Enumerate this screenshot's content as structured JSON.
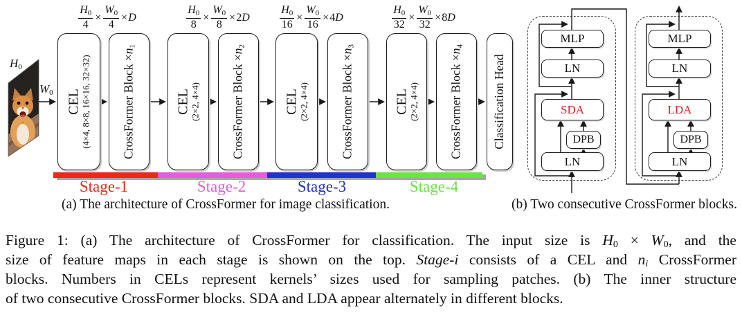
{
  "panel_a": {
    "caption": "(a) The architecture of CrossFormer for image classification.",
    "input_labels": {
      "h_base": "H",
      "h_sub": "0",
      "w_base": "W",
      "w_sub": "0"
    },
    "dim_labels": [
      {
        "num_h": "H",
        "num_w": "W",
        "sub": "0",
        "den": "4",
        "times": "×",
        "coef": "",
        "var": "D"
      },
      {
        "num_h": "H",
        "num_w": "W",
        "sub": "0",
        "den": "8",
        "times": "×",
        "coef": "2",
        "var": "D"
      },
      {
        "num_h": "H",
        "num_w": "W",
        "sub": "0",
        "den": "16",
        "times": "×",
        "coef": "4",
        "var": "D"
      },
      {
        "num_h": "H",
        "num_w": "W",
        "sub": "0",
        "den": "32",
        "times": "×",
        "coef": "8",
        "var": "D"
      }
    ],
    "blocks": [
      {
        "kind": "cel",
        "label": "CEL",
        "kernels": "(4×4, 8×8, 16×16, 32×32)"
      },
      {
        "kind": "crossformer",
        "label": "CrossFormer Block ×",
        "n": "n",
        "n_sub": "1"
      },
      {
        "kind": "cel",
        "label": "CEL",
        "kernels": "(2×2, 4×4)"
      },
      {
        "kind": "crossformer",
        "label": "CrossFormer Block ×",
        "n": "n",
        "n_sub": "2"
      },
      {
        "kind": "cel",
        "label": "CEL",
        "kernels": "(2×2, 4×4)"
      },
      {
        "kind": "crossformer",
        "label": "CrossFormer Block ×",
        "n": "n",
        "n_sub": "3"
      },
      {
        "kind": "cel",
        "label": "CEL",
        "kernels": "(2×2, 4×4)"
      },
      {
        "kind": "crossformer",
        "label": "CrossFormer Block ×",
        "n": "n",
        "n_sub": "4"
      },
      {
        "kind": "head",
        "label": "Classification Head"
      }
    ],
    "stages": [
      {
        "label": "Stage-1",
        "color": "#e82a17"
      },
      {
        "label": "Stage-2",
        "color": "#e55ce0"
      },
      {
        "label": "Stage-3",
        "color": "#2134c9"
      },
      {
        "label": "Stage-4",
        "color": "#68e743"
      }
    ]
  },
  "panel_b": {
    "caption": "(b) Two consecutive CrossFormer blocks.",
    "attn_color": "#e02420",
    "block_left": {
      "mlp": "MLP",
      "ln1": "LN",
      "attn": "SDA",
      "dpb": "DPB",
      "ln2": "LN"
    },
    "block_right": {
      "mlp": "MLP",
      "ln1": "LN",
      "attn": "LDA",
      "dpb": "DPB",
      "ln2": "LN"
    }
  },
  "figure_caption": {
    "lines": [
      [
        {
          "t": "Figure 1: (a) The architecture of CrossFormer for classification. The input size is "
        },
        {
          "t": "H",
          "s": "i"
        },
        {
          "t": "0",
          "s": "sub"
        },
        {
          "t": " × "
        },
        {
          "t": "W",
          "s": "i"
        },
        {
          "t": "0",
          "s": "sub"
        },
        {
          "t": ", and the"
        }
      ],
      [
        {
          "t": "size of feature maps in each stage is shown on the top. "
        },
        {
          "t": "Stage-i",
          "s": "i"
        },
        {
          "t": " consists of a CEL and "
        },
        {
          "t": "n",
          "s": "i"
        },
        {
          "t": "i",
          "s": "isub"
        },
        {
          "t": " CrossFormer"
        }
      ],
      [
        {
          "t": "blocks. Numbers in CELs represent kernels’ sizes used for sampling patches. (b) The inner structure"
        }
      ],
      [
        {
          "t": "of two consecutive CrossFormer blocks. SDA and LDA appear alternately in different blocks."
        }
      ]
    ]
  }
}
